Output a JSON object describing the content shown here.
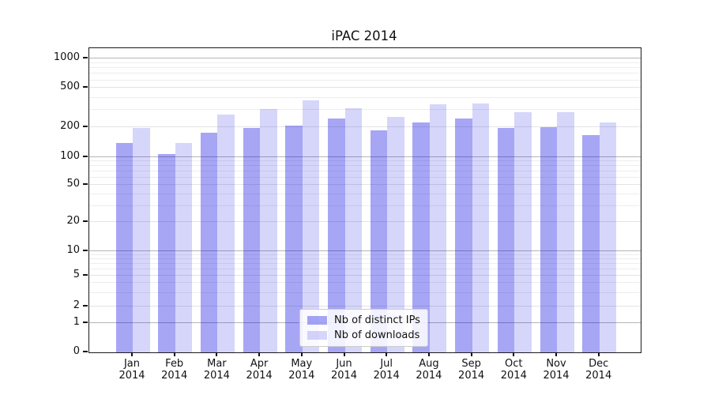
{
  "chart_data": {
    "type": "bar",
    "title": "iPAC 2014",
    "categories": [
      {
        "m": "Jan",
        "y": "2014"
      },
      {
        "m": "Feb",
        "y": "2014"
      },
      {
        "m": "Mar",
        "y": "2014"
      },
      {
        "m": "Apr",
        "y": "2014"
      },
      {
        "m": "May",
        "y": "2014"
      },
      {
        "m": "Jun",
        "y": "2014"
      },
      {
        "m": "Jul",
        "y": "2014"
      },
      {
        "m": "Aug",
        "y": "2014"
      },
      {
        "m": "Sep",
        "y": "2014"
      },
      {
        "m": "Oct",
        "y": "2014"
      },
      {
        "m": "Nov",
        "y": "2014"
      },
      {
        "m": "Dec",
        "y": "2014"
      }
    ],
    "series": [
      {
        "name": "Nb of distinct IPs",
        "color": "rgba(0,0,225,0.35)",
        "values": [
          140,
          107,
          175,
          198,
          208,
          244,
          187,
          226,
          246,
          196,
          200,
          167
        ]
      },
      {
        "name": "Nb of downloads",
        "color": "rgba(0,0,225,0.16)",
        "values": [
          197,
          140,
          271,
          308,
          378,
          314,
          256,
          342,
          351,
          284,
          286,
          223
        ]
      }
    ],
    "yscale": "symlog",
    "yticks": [
      1000,
      500,
      200,
      100,
      50,
      20,
      10,
      5,
      2,
      1,
      0
    ],
    "minor_gridlines": [
      3,
      4,
      6,
      7,
      8,
      9,
      30,
      40,
      60,
      70,
      80,
      90,
      300,
      400,
      600,
      700,
      800,
      900
    ],
    "ylim": [
      0,
      1270
    ],
    "grid": true,
    "legend": {
      "position": "lower center"
    },
    "colors": {
      "major_grid": "#b5b5b5",
      "labeled_minor_grid": "#e3e3e3",
      "minor_grid": "#ededed",
      "spine": "#1a1a1a"
    }
  }
}
